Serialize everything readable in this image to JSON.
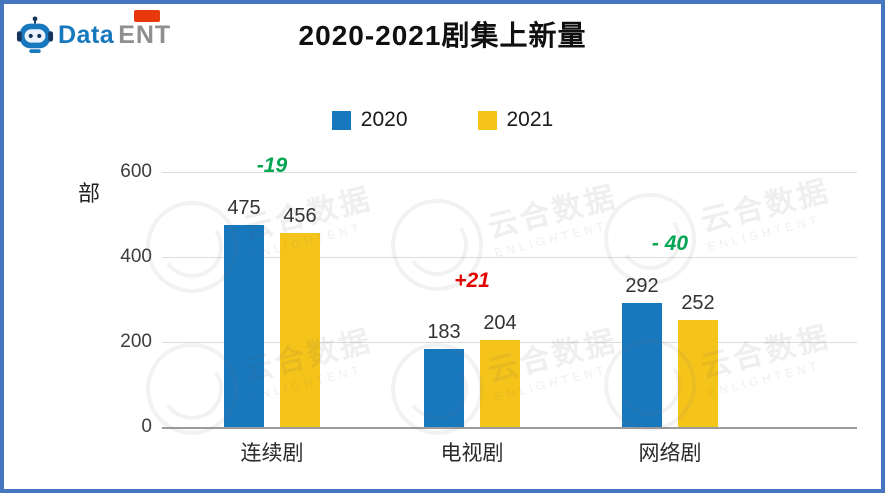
{
  "title": "2020-2021剧集上新量",
  "logo": {
    "data_text": "Data",
    "ent_text": "ENT"
  },
  "colors": {
    "border": "#4576be",
    "series_2020": "#1878be",
    "series_2021": "#f5c41b",
    "decrease": "#00a651",
    "increase": "#e60000"
  },
  "watermark": {
    "cn": "云合数据",
    "en": "ENLIGHTENT"
  },
  "chart_data": {
    "type": "bar",
    "title": "2020-2021剧集上新量",
    "categories": [
      "连续剧",
      "电视剧",
      "网络剧"
    ],
    "series": [
      {
        "name": "2020",
        "color": "#1878be",
        "values": [
          475,
          183,
          292
        ]
      },
      {
        "name": "2021",
        "color": "#f5c41b",
        "values": [
          456,
          204,
          252
        ]
      }
    ],
    "diff_labels": [
      {
        "text": "-19",
        "color": "#00a651"
      },
      {
        "text": "+21",
        "color": "#e60000"
      },
      {
        "text": "- 40",
        "color": "#00a651"
      }
    ],
    "xlabel": "",
    "ylabel": "部",
    "yticks": [
      0,
      200,
      400,
      600
    ],
    "ylim": [
      0,
      600
    ],
    "grid": true,
    "legend_position": "top"
  }
}
